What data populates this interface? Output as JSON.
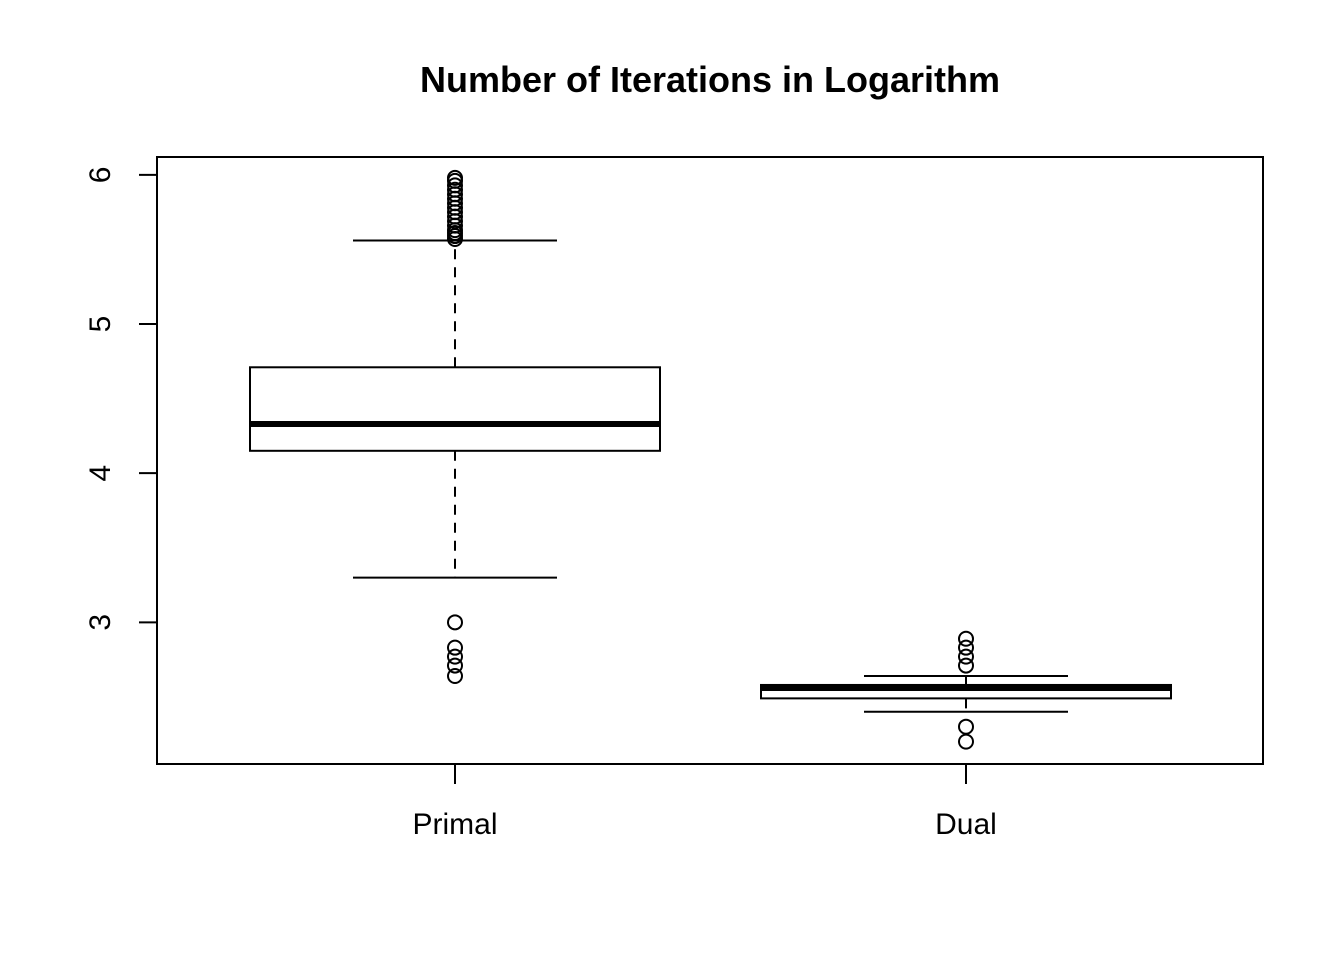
{
  "chart_data": {
    "type": "boxplot",
    "title": "Number of Iterations in Logarithm",
    "xlabel": "",
    "ylabel": "",
    "ylim": [
      2.05,
      6.12
    ],
    "yticks": [
      3,
      4,
      5,
      6
    ],
    "grid": false,
    "categories": [
      "Primal",
      "Dual"
    ],
    "boxes": [
      {
        "category": "Primal",
        "whisker_low": 3.3,
        "q1": 4.15,
        "median": 4.33,
        "q3": 4.71,
        "whisker_high": 5.56,
        "outliers": [
          3.0,
          2.83,
          2.77,
          2.71,
          2.64,
          5.57,
          5.59,
          5.61,
          5.63,
          5.66,
          5.69,
          5.72,
          5.75,
          5.78,
          5.81,
          5.84,
          5.87,
          5.9,
          5.93,
          5.96,
          5.98
        ]
      },
      {
        "category": "Dual",
        "whisker_low": 2.4,
        "q1": 2.49,
        "median": 2.56,
        "q3": 2.58,
        "whisker_high": 2.64,
        "outliers": [
          2.89,
          2.83,
          2.77,
          2.71,
          2.3,
          2.2
        ]
      }
    ]
  }
}
